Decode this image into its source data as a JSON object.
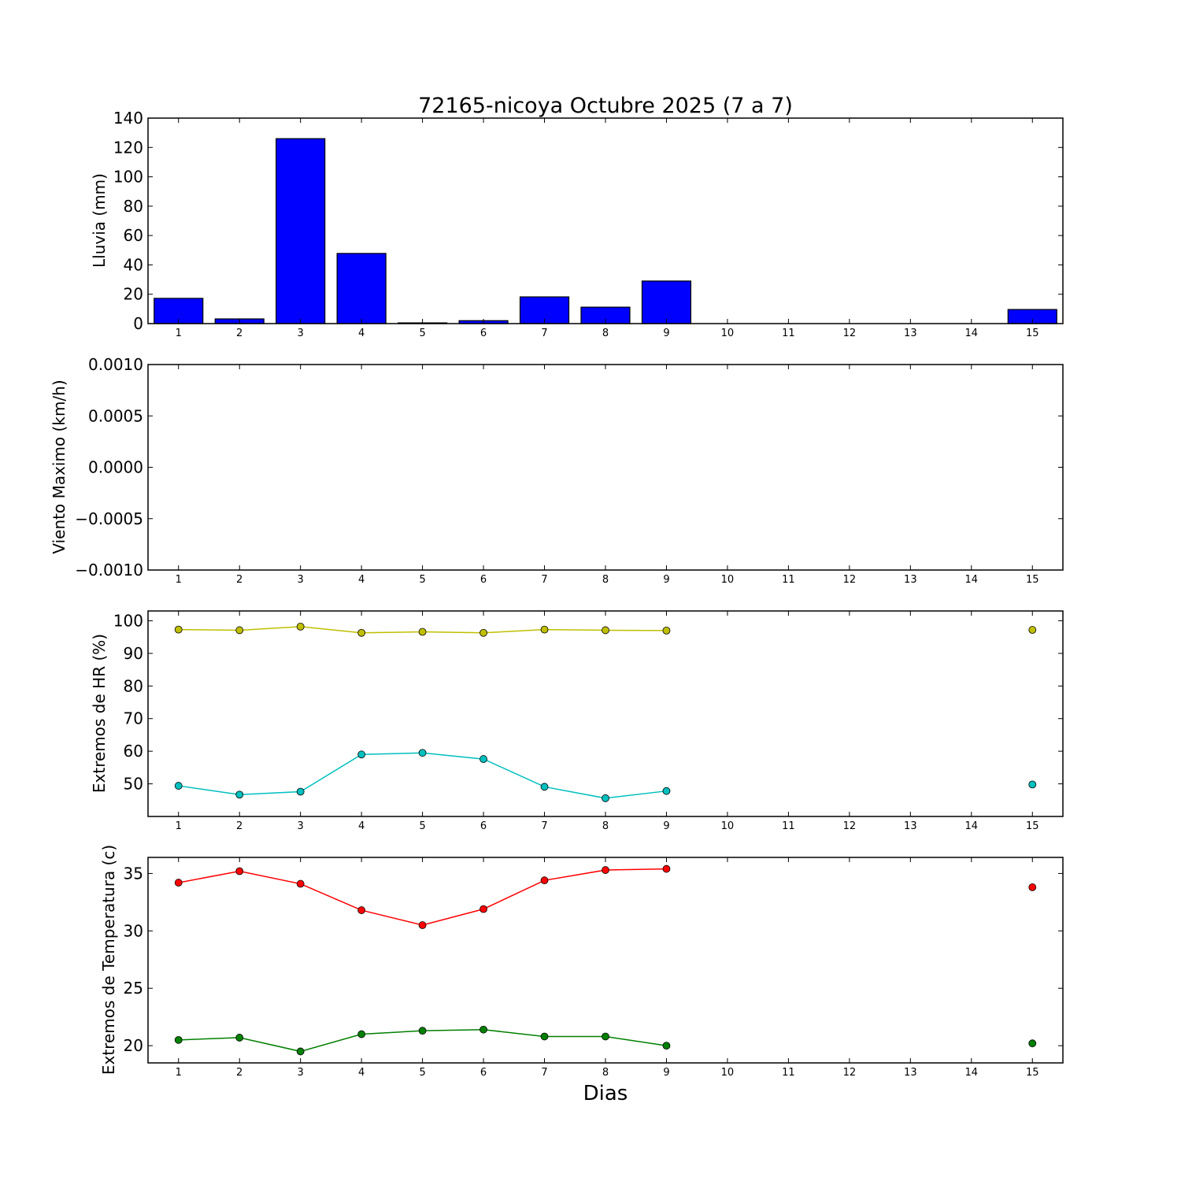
{
  "title": "72165-nicoya Octubre 2025  (7 a 7)",
  "xlabel": "Dias",
  "x_ticks": [
    "1",
    "2",
    "3",
    "4",
    "5",
    "6",
    "7",
    "8",
    "9",
    "10",
    "11",
    "12",
    "13",
    "14",
    "15"
  ],
  "chart_data": [
    {
      "type": "bar",
      "ylabel": "Lluvia (mm)",
      "ylim": [
        0,
        140
      ],
      "yticks": [
        0,
        20,
        40,
        60,
        80,
        100,
        120,
        140
      ],
      "ytick_labels": [
        "0",
        "20",
        "40",
        "60",
        "80",
        "100",
        "120",
        "140"
      ],
      "xlim": [
        0.5,
        15.5
      ],
      "categories": [
        1,
        2,
        3,
        4,
        5,
        6,
        7,
        8,
        9,
        10,
        11,
        12,
        13,
        14,
        15
      ],
      "values": [
        17.2,
        3.2,
        126.0,
        47.8,
        0.5,
        2.0,
        18.2,
        11.2,
        29.0,
        0,
        0,
        0,
        0,
        0,
        9.6
      ],
      "color": "#0000ff"
    },
    {
      "type": "line",
      "ylabel": "Viento Maximo (km/h)",
      "ylim": [
        -0.001,
        0.001
      ],
      "yticks": [
        -0.001,
        -0.0005,
        0,
        0.0005,
        0.001
      ],
      "ytick_labels": [
        "−0.0010",
        "−0.0005",
        "0.0000",
        "0.0005",
        "0.0010"
      ],
      "xlim": [
        0.5,
        15.5
      ],
      "series": []
    },
    {
      "type": "line",
      "ylabel": "Extremos de HR (%)",
      "ylim": [
        40,
        103
      ],
      "yticks": [
        50,
        60,
        70,
        80,
        90,
        100
      ],
      "ytick_labels": [
        "50",
        "60",
        "70",
        "80",
        "90",
        "100"
      ],
      "xlim": [
        0.5,
        15.5
      ],
      "series": [
        {
          "color": "#bfbf00",
          "x": [
            1,
            2,
            3,
            4,
            5,
            6,
            7,
            8,
            9
          ],
          "values": [
            97.3,
            97.1,
            98.2,
            96.3,
            96.6,
            96.3,
            97.3,
            97.1,
            97.0
          ]
        },
        {
          "color": "#bfbf00",
          "x": [
            15
          ],
          "values": [
            97.2
          ]
        },
        {
          "color": "#00bfbf",
          "x": [
            1,
            2,
            3,
            4,
            5,
            6,
            7,
            8,
            9
          ],
          "values": [
            49.4,
            46.7,
            47.6,
            59.0,
            59.5,
            57.6,
            49.1,
            45.6,
            47.8
          ]
        },
        {
          "color": "#00bfbf",
          "x": [
            15
          ],
          "values": [
            49.8
          ]
        }
      ]
    },
    {
      "type": "line",
      "ylabel": "Extremos de Temperatura (c)",
      "ylim": [
        18.5,
        36.4
      ],
      "yticks": [
        20,
        25,
        30,
        35
      ],
      "ytick_labels": [
        "20",
        "25",
        "30",
        "35"
      ],
      "xlim": [
        0.5,
        15.5
      ],
      "series": [
        {
          "color": "#ff0000",
          "x": [
            1,
            2,
            3,
            4,
            5,
            6,
            7,
            8,
            9
          ],
          "values": [
            34.2,
            35.2,
            34.1,
            31.8,
            30.5,
            31.9,
            34.4,
            35.3,
            35.4
          ]
        },
        {
          "color": "#ff0000",
          "x": [
            15
          ],
          "values": [
            33.8
          ]
        },
        {
          "color": "#008000",
          "x": [
            1,
            2,
            3,
            4,
            5,
            6,
            7,
            8,
            9
          ],
          "values": [
            20.5,
            20.7,
            19.5,
            21.0,
            21.3,
            21.4,
            20.8,
            20.8,
            20.0
          ]
        },
        {
          "color": "#008000",
          "x": [
            15
          ],
          "values": [
            20.2
          ]
        }
      ]
    }
  ]
}
